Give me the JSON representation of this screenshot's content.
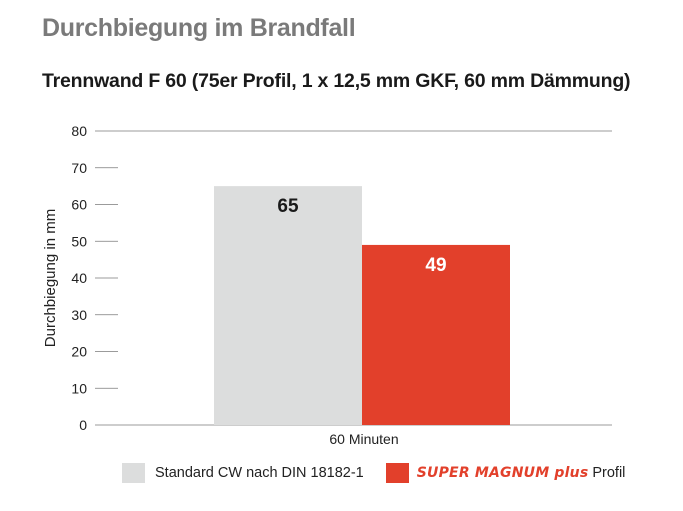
{
  "title": "Durchbiegung im Brandfall",
  "subtitle": "Trennwand F 60 (75er Profil, 1 x 12,5 mm GKF, 60 mm Dämmung)",
  "colors": {
    "standard": "#dcdddd",
    "magnum": "#e2402b",
    "gridline": "#7a7a7a"
  },
  "chart_data": {
    "type": "bar",
    "title": "Trennwand F 60 (75er Profil, 1 x 12,5 mm GKF, 60 mm Dämmung)",
    "xlabel": "",
    "ylabel": "Durchbiegung in mm",
    "ylim": [
      0,
      80
    ],
    "yticks": [
      0,
      10,
      20,
      30,
      40,
      50,
      60,
      70,
      80
    ],
    "categories": [
      "60 Minuten"
    ],
    "series": [
      {
        "name": "Standard CW nach DIN 18182-1",
        "values": [
          65
        ]
      },
      {
        "name": "SUPER MAGNUM plus Profil",
        "values": [
          49
        ]
      }
    ],
    "grid": "partial",
    "legend_position": "bottom"
  },
  "legend": {
    "standard_label": "Standard CW nach DIN 18182-1",
    "magnum_brand": "SUPER MAGNUM plus",
    "magnum_suffix": "Profil"
  }
}
